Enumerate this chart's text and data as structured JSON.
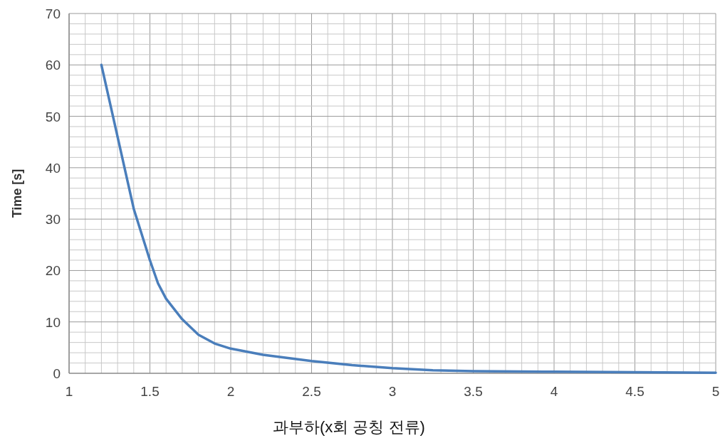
{
  "chart_data": {
    "type": "line",
    "xlabel": "과부하(x회 공칭 전류)",
    "ylabel": "Time [s]",
    "xlim": [
      1,
      5
    ],
    "xticks": [
      1,
      1.5,
      2,
      2.5,
      3,
      3.5,
      4,
      4.5,
      5
    ],
    "ylim": [
      0,
      70
    ],
    "yticks": [
      0,
      10,
      20,
      30,
      40,
      50,
      60,
      70
    ],
    "grid": true,
    "marker": "none",
    "line_style": "solid",
    "x": [
      1.2,
      1.3,
      1.4,
      1.5,
      1.55,
      1.6,
      1.7,
      1.8,
      1.9,
      2,
      2.2,
      2.5,
      2.75,
      3,
      3.25,
      3.5,
      4,
      4.5,
      5
    ],
    "series": [
      {
        "color": "#4a7ebb",
        "values": [
          60,
          46,
          32,
          22,
          17.5,
          14.5,
          10.5,
          7.5,
          5.8,
          4.8,
          3.6,
          2.4,
          1.6,
          1.0,
          0.6,
          0.4,
          0.3,
          0.2,
          0.1
        ]
      }
    ]
  }
}
